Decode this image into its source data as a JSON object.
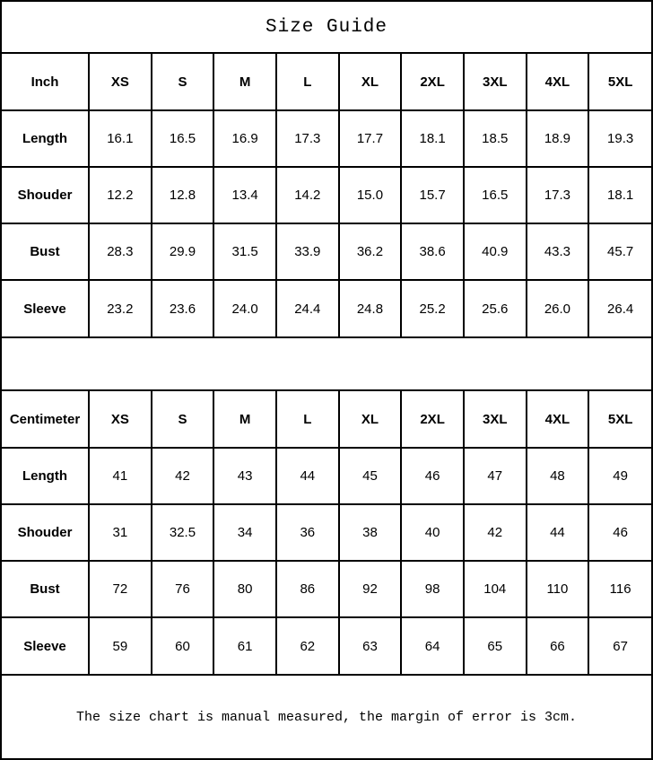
{
  "title": "Size Guide",
  "footer": "The size chart is manual measured, the margin of error is 3cm.",
  "colors": {
    "border": "#000000",
    "background": "#ffffff",
    "text": "#000000"
  },
  "tables": [
    {
      "unit_label": "Inch",
      "sizes": [
        "XS",
        "S",
        "M",
        "L",
        "XL",
        "2XL",
        "3XL",
        "4XL",
        "5XL"
      ],
      "rows": [
        {
          "label": "Length",
          "values": [
            "16.1",
            "16.5",
            "16.9",
            "17.3",
            "17.7",
            "18.1",
            "18.5",
            "18.9",
            "19.3"
          ]
        },
        {
          "label": "Shouder",
          "values": [
            "12.2",
            "12.8",
            "13.4",
            "14.2",
            "15.0",
            "15.7",
            "16.5",
            "17.3",
            "18.1"
          ]
        },
        {
          "label": "Bust",
          "values": [
            "28.3",
            "29.9",
            "31.5",
            "33.9",
            "36.2",
            "38.6",
            "40.9",
            "43.3",
            "45.7"
          ]
        },
        {
          "label": "Sleeve",
          "values": [
            "23.2",
            "23.6",
            "24.0",
            "24.4",
            "24.8",
            "25.2",
            "25.6",
            "26.0",
            "26.4"
          ]
        }
      ]
    },
    {
      "unit_label": "Centimeter",
      "sizes": [
        "XS",
        "S",
        "M",
        "L",
        "XL",
        "2XL",
        "3XL",
        "4XL",
        "5XL"
      ],
      "rows": [
        {
          "label": "Length",
          "values": [
            "41",
            "42",
            "43",
            "44",
            "45",
            "46",
            "47",
            "48",
            "49"
          ]
        },
        {
          "label": "Shouder",
          "values": [
            "31",
            "32.5",
            "34",
            "36",
            "38",
            "40",
            "42",
            "44",
            "46"
          ]
        },
        {
          "label": "Bust",
          "values": [
            "72",
            "76",
            "80",
            "86",
            "92",
            "98",
            "104",
            "110",
            "116"
          ]
        },
        {
          "label": "Sleeve",
          "values": [
            "59",
            "60",
            "61",
            "62",
            "63",
            "64",
            "65",
            "66",
            "67"
          ]
        }
      ]
    }
  ]
}
